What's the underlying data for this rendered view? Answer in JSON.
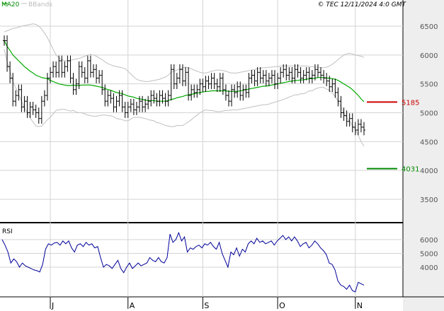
{
  "header": {
    "legend_ma": "MA20",
    "legend_bb": "BBands",
    "copyright": "© TEC 12/11/2024 4:0 GMT"
  },
  "colors": {
    "background": "#ffffff",
    "panel_right": "#eeeeee",
    "grid": "#d3d3d3",
    "price_bars": "#000000",
    "ma20": "#00aa00",
    "bbands": "#c0c0c0",
    "resistance": "#cc0000",
    "support": "#008800",
    "rsi": "#000099",
    "axis_text": "#555555"
  },
  "chart_data": [
    {
      "type": "ohlc",
      "title": "",
      "overlays": [
        "MA20",
        "BBands"
      ],
      "y_ticks": [
        3500,
        4000,
        4500,
        5000,
        5500,
        6000,
        6500
      ],
      "ylim": [
        3000,
        6700
      ],
      "x_months": [
        "J",
        "A",
        "S",
        "O",
        "N"
      ],
      "x_month_index": [
        16,
        43,
        69,
        95,
        122
      ],
      "closes": [
        6250,
        5800,
        5600,
        5200,
        5300,
        5400,
        5100,
        5200,
        5000,
        5100,
        5050,
        5000,
        4900,
        5200,
        5300,
        5600,
        5700,
        5800,
        5700,
        5900,
        5700,
        5800,
        5900,
        5600,
        5400,
        5500,
        5800,
        5700,
        5600,
        5900,
        5700,
        5750,
        5600,
        5650,
        5400,
        5200,
        5300,
        5250,
        5100,
        5200,
        5300,
        5100,
        5000,
        5100,
        5150,
        5050,
        5100,
        5200,
        5100,
        5150,
        5200,
        5300,
        5250,
        5200,
        5300,
        5250,
        5200,
        5300,
        5750,
        5500,
        5600,
        5750,
        5550,
        5700,
        5300,
        5400,
        5350,
        5400,
        5500,
        5450,
        5550,
        5500,
        5600,
        5500,
        5450,
        5600,
        5400,
        5300,
        5200,
        5400,
        5350,
        5450,
        5300,
        5400,
        5350,
        5600,
        5650,
        5550,
        5700,
        5600,
        5650,
        5550,
        5600,
        5650,
        5500,
        5600,
        5700,
        5750,
        5650,
        5700,
        5600,
        5750,
        5700,
        5600,
        5650,
        5700,
        5600,
        5650,
        5750,
        5700,
        5650,
        5600,
        5550,
        5450,
        5500,
        5350,
        5200,
        5000,
        4950,
        4850,
        4900,
        4750,
        4700,
        4800,
        4750,
        4700
      ],
      "ma20": [
        6250,
        6150,
        6080,
        6000,
        5950,
        5900,
        5850,
        5800,
        5760,
        5720,
        5690,
        5650,
        5630,
        5610,
        5600,
        5590,
        5560,
        5540,
        5520,
        5500,
        5490,
        5480,
        5470,
        5470,
        5480,
        5470,
        5470,
        5480,
        5480,
        5480,
        5480,
        5470,
        5460,
        5450,
        5440,
        5420,
        5400,
        5390,
        5370,
        5350,
        5340,
        5330,
        5310,
        5290,
        5280,
        5270,
        5250,
        5240,
        5230,
        5220,
        5210,
        5210,
        5210,
        5200,
        5200,
        5200,
        5200,
        5210,
        5230,
        5240,
        5260,
        5270,
        5280,
        5300,
        5310,
        5320,
        5330,
        5340,
        5350,
        5360,
        5370,
        5370,
        5380,
        5380,
        5380,
        5380,
        5380,
        5380,
        5370,
        5370,
        5370,
        5370,
        5380,
        5390,
        5400,
        5410,
        5420,
        5430,
        5440,
        5450,
        5460,
        5460,
        5470,
        5480,
        5490,
        5500,
        5510,
        5520,
        5530,
        5540,
        5550,
        5560,
        5560,
        5570,
        5570,
        5580,
        5590,
        5590,
        5600,
        5610,
        5610,
        5610,
        5600,
        5600,
        5590,
        5580,
        5560,
        5530,
        5500,
        5470,
        5440,
        5400,
        5350,
        5300,
        5240,
        5190
      ],
      "bb_upper": [
        6400,
        6420,
        6440,
        6460,
        6470,
        6480,
        6500,
        6510,
        6520,
        6530,
        6540,
        6530,
        6500,
        6450,
        6380,
        6300,
        6200,
        6100,
        6000,
        5950,
        5920,
        5900,
        5900,
        5910,
        5920,
        5930,
        5940,
        5960,
        5980,
        6000,
        6010,
        6000,
        5980,
        5950,
        5920,
        5880,
        5850,
        5830,
        5810,
        5800,
        5790,
        5780,
        5760,
        5720,
        5670,
        5620,
        5580,
        5560,
        5550,
        5540,
        5540,
        5550,
        5560,
        5570,
        5580,
        5600,
        5620,
        5650,
        5700,
        5720,
        5740,
        5760,
        5780,
        5790,
        5780,
        5760,
        5740,
        5720,
        5700,
        5690,
        5690,
        5700,
        5720,
        5730,
        5740,
        5740,
        5730,
        5720,
        5700,
        5690,
        5690,
        5690,
        5700,
        5710,
        5720,
        5730,
        5740,
        5750,
        5760,
        5770,
        5780,
        5780,
        5790,
        5790,
        5800,
        5800,
        5810,
        5810,
        5810,
        5810,
        5810,
        5810,
        5810,
        5810,
        5810,
        5810,
        5800,
        5800,
        5790,
        5790,
        5780,
        5780,
        5790,
        5810,
        5840,
        5880,
        5920,
        5960,
        6000,
        6020,
        6030,
        6020,
        6000,
        5990,
        5980,
        5960
      ],
      "bb_lower": [
        6100,
        5880,
        5720,
        5540,
        5430,
        5320,
        5200,
        5090,
        5000,
        4910,
        4840,
        4770,
        4760,
        4770,
        4820,
        4880,
        4920,
        4980,
        5040,
        5050,
        5060,
        5060,
        5040,
        5030,
        5040,
        5010,
        5000,
        5000,
        4980,
        4960,
        4950,
        4940,
        4940,
        4950,
        4960,
        4960,
        4950,
        4950,
        4930,
        4900,
        4890,
        4880,
        4860,
        4860,
        4890,
        4920,
        4920,
        4920,
        4910,
        4900,
        4880,
        4870,
        4860,
        4830,
        4820,
        4800,
        4780,
        4770,
        4760,
        4760,
        4780,
        4780,
        4780,
        4810,
        4840,
        4880,
        4920,
        4960,
        5000,
        5030,
        5050,
        5040,
        5040,
        5030,
        5020,
        5020,
        5030,
        5040,
        5040,
        5050,
        5050,
        5050,
        5060,
        5070,
        5080,
        5090,
        5100,
        5110,
        5120,
        5130,
        5140,
        5140,
        5150,
        5170,
        5180,
        5200,
        5210,
        5230,
        5250,
        5270,
        5290,
        5310,
        5310,
        5330,
        5330,
        5350,
        5380,
        5380,
        5410,
        5430,
        5440,
        5440,
        5410,
        5390,
        5340,
        5280,
        5200,
        5100,
        5000,
        4920,
        4850,
        4780,
        4700,
        4610,
        4500,
        4420
      ],
      "levels": [
        {
          "name": "resistance",
          "value": 5185,
          "label": "5185"
        },
        {
          "name": "support",
          "value": 4031,
          "label": "4031"
        }
      ]
    },
    {
      "type": "line",
      "title": "RSI",
      "y_ticks": [
        4000,
        5000,
        6000
      ],
      "ylim": [
        2000,
        7200
      ],
      "values": [
        6000,
        5600,
        5100,
        4300,
        4600,
        4400,
        4000,
        4300,
        4100,
        4000,
        3900,
        3800,
        3750,
        3650,
        4200,
        5300,
        5700,
        5600,
        5750,
        5800,
        5600,
        5900,
        5700,
        5900,
        5400,
        5100,
        5600,
        5700,
        5500,
        5800,
        5600,
        5700,
        5400,
        5500,
        4700,
        4000,
        4200,
        4100,
        3900,
        4200,
        4500,
        3900,
        3600,
        4000,
        4300,
        3900,
        4100,
        4300,
        4100,
        4200,
        4300,
        4700,
        4500,
        4400,
        4700,
        4400,
        4300,
        4700,
        6400,
        5800,
        6000,
        6500,
        5900,
        6200,
        5100,
        5400,
        5300,
        5500,
        5600,
        5400,
        5700,
        5600,
        5800,
        5500,
        5300,
        5800,
        5000,
        4500,
        4000,
        5100,
        4900,
        5400,
        4800,
        5300,
        5100,
        5700,
        5900,
        5700,
        6100,
        5800,
        5900,
        5700,
        5800,
        5900,
        5600,
        5900,
        6100,
        6300,
        6000,
        6200,
        5900,
        6200,
        5900,
        5500,
        5700,
        5800,
        5400,
        5600,
        5900,
        5700,
        5400,
        5200,
        4900,
        4300,
        4200,
        3800,
        3000,
        2700,
        2600,
        2400,
        2700,
        2300,
        2200,
        2900,
        2800,
        2700
      ]
    }
  ]
}
